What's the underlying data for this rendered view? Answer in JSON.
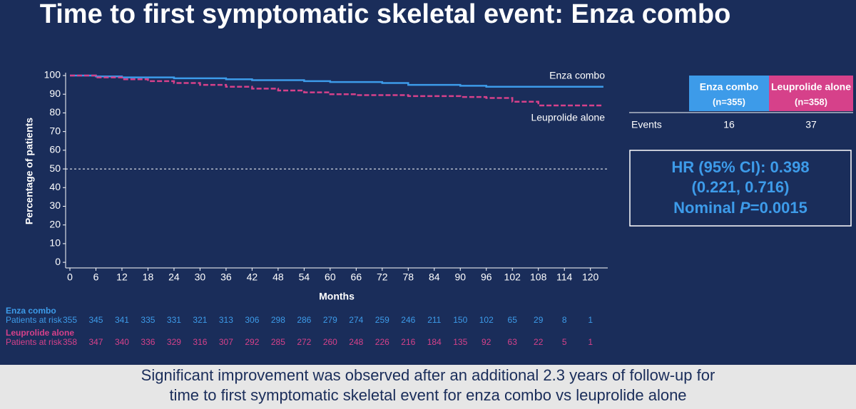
{
  "title": "Time to first symptomatic skeletal event: Enza combo",
  "chart_data": {
    "type": "line",
    "step": true,
    "x_label": "Months",
    "y_label": "Percentage of patients",
    "x": [
      0,
      6,
      12,
      18,
      24,
      30,
      36,
      42,
      48,
      54,
      60,
      66,
      72,
      78,
      84,
      90,
      96,
      102,
      108,
      114,
      120,
      123
    ],
    "series": [
      {
        "name": "Enza combo",
        "color": "#3d9be9",
        "dash": false,
        "values": [
          100,
          99.5,
          99,
          99,
          98.5,
          98.5,
          98,
          97.5,
          97.5,
          97,
          96.5,
          96.5,
          96,
          95,
          95,
          94.5,
          94,
          94,
          94,
          94,
          94,
          94
        ]
      },
      {
        "name": "Leuprolide alone",
        "color": "#d6418a",
        "dash": true,
        "values": [
          100,
          99,
          98,
          97,
          96,
          95,
          94,
          93,
          92,
          91,
          90,
          89.5,
          89.5,
          89,
          89,
          88.5,
          88,
          86,
          84,
          84,
          84,
          84
        ]
      }
    ],
    "xlim": [
      0,
      124
    ],
    "xticks": [
      0,
      6,
      12,
      18,
      24,
      30,
      36,
      42,
      48,
      54,
      60,
      66,
      72,
      78,
      84,
      90,
      96,
      102,
      108,
      114,
      120
    ],
    "ylim": [
      -3,
      100
    ],
    "yticks": [
      0,
      10,
      20,
      30,
      40,
      50,
      60,
      70,
      80,
      90,
      100
    ],
    "ref_line": 50
  },
  "risk_table": [
    {
      "name": "Enza combo",
      "label": "Patients at risk",
      "color": "#3d9be9",
      "values": [
        355,
        345,
        341,
        335,
        331,
        321,
        313,
        306,
        298,
        286,
        279,
        274,
        259,
        246,
        211,
        150,
        102,
        65,
        29,
        8,
        1
      ]
    },
    {
      "name": "Leuprolide alone",
      "label": "Patients at risk",
      "color": "#d6418a",
      "values": [
        358,
        347,
        340,
        336,
        329,
        316,
        307,
        292,
        285,
        272,
        260,
        248,
        226,
        216,
        184,
        135,
        92,
        63,
        22,
        5,
        1
      ]
    }
  ],
  "events_table": {
    "headers": [
      {
        "name": "Enza combo",
        "n": "(n=355)"
      },
      {
        "name": "Leuprolide alone",
        "n": "(n=358)"
      }
    ],
    "row_label": "Events",
    "values": [
      16,
      37
    ]
  },
  "hr_box": {
    "line1": "HR (95% CI): 0.398",
    "line2": "(0.221, 0.716)",
    "line3_a": "Nominal ",
    "line3_p": "P",
    "line3_b": "=0.0015"
  },
  "footer": [
    "Significant improvement was observed after an additional 2.3 years of follow-up for",
    "time to first symptomatic skeletal event for enza combo vs leuprolide alone"
  ]
}
